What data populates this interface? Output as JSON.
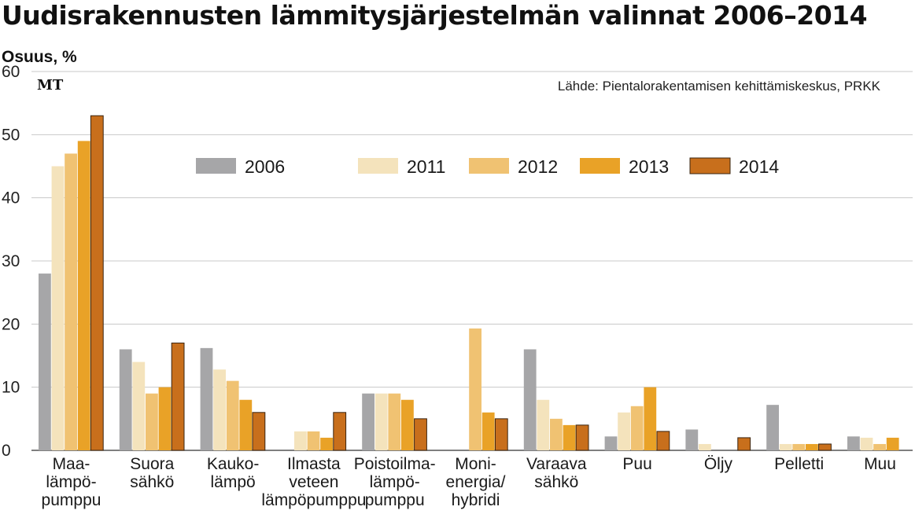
{
  "header": {
    "title": "Uudisrakennusten lämmitysjärjestelmän valinnat 2006–2014",
    "ylabel": "Osuus, %",
    "logo": "MT",
    "source": "Lähde: Pientalorakentamisen kehittämiskeskus, PRKK"
  },
  "chart_data": {
    "type": "bar",
    "title": "Uudisrakennusten lämmitysjärjestelmän valinnat 2006–2014",
    "ylabel": "Osuus, %",
    "ylim": [
      0,
      60
    ],
    "yticks": [
      0,
      10,
      20,
      30,
      40,
      50,
      60
    ],
    "grid": true,
    "legend_position": "top-center",
    "categories": [
      [
        "Maa-",
        "lämpö-",
        "pumppu"
      ],
      [
        "Suora",
        "sähkö"
      ],
      [
        "Kauko-",
        "lämpö"
      ],
      [
        "Ilmasta",
        "veteen",
        "lämpöpumppu"
      ],
      [
        "Poistoilma-",
        "lämpö-",
        "pumppu"
      ],
      [
        "Moni-",
        "energia/",
        "hybridi"
      ],
      [
        "Varaava",
        "sähkö"
      ],
      [
        "Puu"
      ],
      [
        "Öljy"
      ],
      [
        "Pelletti"
      ],
      [
        "Muu"
      ]
    ],
    "series": [
      {
        "name": "2006",
        "color": "#a6a6a8",
        "values": [
          28,
          16,
          16.2,
          null,
          9,
          null,
          16,
          2.2,
          3.3,
          7.2,
          2.2
        ]
      },
      {
        "name": "2011",
        "color": "#f4e3bc",
        "values": [
          45,
          14,
          12.8,
          3,
          9,
          null,
          8,
          6,
          1,
          1,
          2
        ]
      },
      {
        "name": "2012",
        "color": "#f0c272",
        "values": [
          47,
          9,
          11,
          3,
          9,
          19.3,
          5,
          7,
          null,
          1,
          1
        ]
      },
      {
        "name": "2013",
        "color": "#e9a227",
        "values": [
          49,
          10,
          8,
          2,
          8,
          6,
          4,
          10,
          null,
          1,
          2
        ]
      },
      {
        "name": "2014",
        "color": "#c86f1c",
        "values": [
          53,
          17,
          6,
          6,
          5,
          5,
          4,
          3,
          2,
          1,
          null
        ]
      }
    ]
  }
}
